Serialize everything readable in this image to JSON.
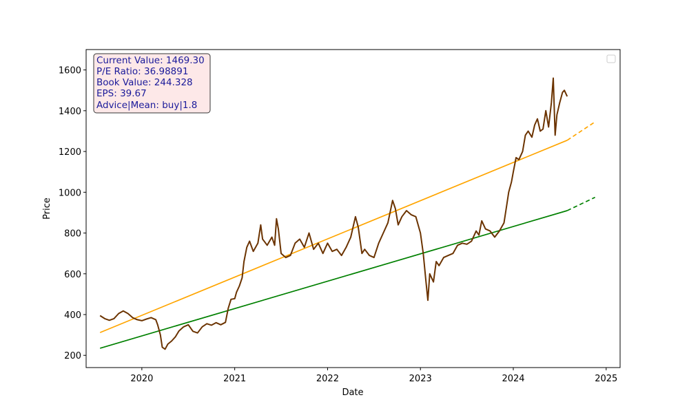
{
  "chart_data": {
    "type": "line",
    "xlabel": "Date",
    "ylabel": "Price",
    "xlim": [
      2019.4,
      2025.15
    ],
    "ylim": [
      140,
      1700
    ],
    "x_ticks": [
      2020,
      2021,
      2022,
      2023,
      2024,
      2025
    ],
    "x_tick_labels": [
      "2020",
      "2021",
      "2022",
      "2023",
      "2024",
      "2025"
    ],
    "y_ticks": [
      200,
      400,
      600,
      800,
      1000,
      1200,
      1400,
      1600
    ],
    "y_tick_labels": [
      "200",
      "400",
      "600",
      "800",
      "1000",
      "1200",
      "1400",
      "1600"
    ],
    "legend": {
      "placement": "top-right",
      "entries": []
    },
    "info_box": [
      "Current Value: 1469.30",
      "P/E Ratio: 36.98891",
      "Book Value: 244.328",
      "EPS: 39.67",
      "Advice|Mean: buy|1.8"
    ],
    "series": [
      {
        "color": "#6b3300",
        "points": [
          [
            2019.55,
            395
          ],
          [
            2019.6,
            380
          ],
          [
            2019.65,
            372
          ],
          [
            2019.7,
            380
          ],
          [
            2019.75,
            405
          ],
          [
            2019.8,
            418
          ],
          [
            2019.85,
            405
          ],
          [
            2019.9,
            385
          ],
          [
            2019.95,
            375
          ],
          [
            2020.0,
            370
          ],
          [
            2020.05,
            378
          ],
          [
            2020.1,
            385
          ],
          [
            2020.15,
            375
          ],
          [
            2020.17,
            350
          ],
          [
            2020.2,
            300
          ],
          [
            2020.22,
            240
          ],
          [
            2020.25,
            230
          ],
          [
            2020.28,
            255
          ],
          [
            2020.32,
            270
          ],
          [
            2020.36,
            290
          ],
          [
            2020.4,
            320
          ],
          [
            2020.45,
            340
          ],
          [
            2020.5,
            350
          ],
          [
            2020.55,
            318
          ],
          [
            2020.6,
            310
          ],
          [
            2020.65,
            340
          ],
          [
            2020.7,
            355
          ],
          [
            2020.75,
            348
          ],
          [
            2020.8,
            360
          ],
          [
            2020.85,
            350
          ],
          [
            2020.9,
            362
          ],
          [
            2020.93,
            430
          ],
          [
            2020.96,
            475
          ],
          [
            2021.0,
            478
          ],
          [
            2021.02,
            510
          ],
          [
            2021.05,
            540
          ],
          [
            2021.08,
            580
          ],
          [
            2021.1,
            660
          ],
          [
            2021.13,
            730
          ],
          [
            2021.16,
            760
          ],
          [
            2021.2,
            710
          ],
          [
            2021.25,
            750
          ],
          [
            2021.28,
            840
          ],
          [
            2021.3,
            770
          ],
          [
            2021.35,
            740
          ],
          [
            2021.4,
            780
          ],
          [
            2021.43,
            740
          ],
          [
            2021.45,
            870
          ],
          [
            2021.47,
            820
          ],
          [
            2021.5,
            700
          ],
          [
            2021.55,
            680
          ],
          [
            2021.6,
            690
          ],
          [
            2021.65,
            750
          ],
          [
            2021.7,
            770
          ],
          [
            2021.75,
            730
          ],
          [
            2021.8,
            800
          ],
          [
            2021.85,
            720
          ],
          [
            2021.9,
            750
          ],
          [
            2021.95,
            700
          ],
          [
            2022.0,
            750
          ],
          [
            2022.05,
            710
          ],
          [
            2022.1,
            720
          ],
          [
            2022.15,
            690
          ],
          [
            2022.2,
            730
          ],
          [
            2022.25,
            780
          ],
          [
            2022.3,
            880
          ],
          [
            2022.33,
            830
          ],
          [
            2022.37,
            700
          ],
          [
            2022.4,
            720
          ],
          [
            2022.45,
            690
          ],
          [
            2022.5,
            680
          ],
          [
            2022.55,
            750
          ],
          [
            2022.6,
            800
          ],
          [
            2022.65,
            850
          ],
          [
            2022.7,
            960
          ],
          [
            2022.73,
            920
          ],
          [
            2022.76,
            840
          ],
          [
            2022.8,
            880
          ],
          [
            2022.85,
            910
          ],
          [
            2022.9,
            890
          ],
          [
            2022.95,
            880
          ],
          [
            2023.0,
            800
          ],
          [
            2023.03,
            700
          ],
          [
            2023.06,
            560
          ],
          [
            2023.08,
            470
          ],
          [
            2023.1,
            600
          ],
          [
            2023.14,
            560
          ],
          [
            2023.17,
            660
          ],
          [
            2023.2,
            640
          ],
          [
            2023.25,
            680
          ],
          [
            2023.3,
            690
          ],
          [
            2023.35,
            700
          ],
          [
            2023.4,
            740
          ],
          [
            2023.45,
            750
          ],
          [
            2023.5,
            745
          ],
          [
            2023.55,
            760
          ],
          [
            2023.6,
            810
          ],
          [
            2023.63,
            790
          ],
          [
            2023.66,
            860
          ],
          [
            2023.7,
            820
          ],
          [
            2023.75,
            810
          ],
          [
            2023.8,
            780
          ],
          [
            2023.85,
            810
          ],
          [
            2023.9,
            850
          ],
          [
            2023.93,
            940
          ],
          [
            2023.95,
            1000
          ],
          [
            2023.98,
            1050
          ],
          [
            2024.0,
            1100
          ],
          [
            2024.03,
            1170
          ],
          [
            2024.06,
            1160
          ],
          [
            2024.1,
            1200
          ],
          [
            2024.13,
            1280
          ],
          [
            2024.16,
            1300
          ],
          [
            2024.2,
            1270
          ],
          [
            2024.23,
            1330
          ],
          [
            2024.26,
            1360
          ],
          [
            2024.29,
            1300
          ],
          [
            2024.32,
            1310
          ],
          [
            2024.35,
            1400
          ],
          [
            2024.38,
            1320
          ],
          [
            2024.41,
            1440
          ],
          [
            2024.43,
            1560
          ],
          [
            2024.45,
            1280
          ],
          [
            2024.47,
            1380
          ],
          [
            2024.5,
            1440
          ],
          [
            2024.53,
            1490
          ],
          [
            2024.55,
            1500
          ],
          [
            2024.58,
            1470
          ]
        ]
      },
      {
        "color": "#ffa500",
        "points": [
          [
            2019.55,
            312
          ],
          [
            2024.58,
            1255
          ]
        ],
        "projection": [
          [
            2024.58,
            1255
          ],
          [
            2024.88,
            1345
          ]
        ]
      },
      {
        "color": "#008000",
        "points": [
          [
            2019.55,
            235
          ],
          [
            2024.58,
            910
          ]
        ],
        "projection": [
          [
            2024.58,
            910
          ],
          [
            2024.88,
            975
          ]
        ]
      }
    ]
  }
}
